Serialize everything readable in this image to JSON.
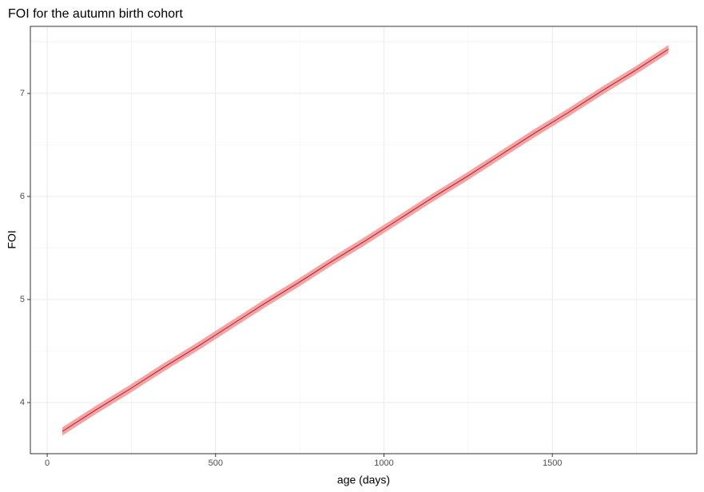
{
  "chart_data": {
    "type": "line",
    "title": "FOI for the autumn birth cohort",
    "x_label": "age (days)",
    "y_label": "FOI",
    "x": [
      45,
      145,
      245,
      345,
      445,
      545,
      645,
      745,
      845,
      945,
      1045,
      1145,
      1245,
      1345,
      1445,
      1545,
      1645,
      1745,
      1845
    ],
    "values": [
      3.72,
      3.93,
      4.13,
      4.34,
      4.54,
      4.75,
      4.96,
      5.16,
      5.37,
      5.57,
      5.78,
      5.99,
      6.19,
      6.4,
      6.61,
      6.81,
      7.02,
      7.22,
      7.43
    ],
    "lower": [
      3.68,
      3.89,
      4.09,
      4.3,
      4.5,
      4.71,
      4.92,
      5.12,
      5.33,
      5.53,
      5.74,
      5.95,
      6.15,
      6.36,
      6.57,
      6.77,
      6.98,
      7.18,
      7.39
    ],
    "upper": [
      3.76,
      3.97,
      4.17,
      4.38,
      4.58,
      4.79,
      5.0,
      5.2,
      5.41,
      5.61,
      5.82,
      6.03,
      6.23,
      6.44,
      6.65,
      6.85,
      7.06,
      7.26,
      7.47
    ],
    "color": "#b2182b",
    "band_color": "#f4a3a3",
    "xlim": [
      -50,
      1929
    ],
    "ylim": [
      3.504,
      7.651
    ],
    "xticks": [
      0,
      500,
      1000,
      1500
    ],
    "yticks": [
      4,
      5,
      6,
      7
    ],
    "x_minor_grid": [
      250,
      750,
      1250,
      1750
    ],
    "y_minor_grid": [
      3.5,
      4.5,
      5.5,
      6.5,
      7.5
    ],
    "grid": true
  }
}
